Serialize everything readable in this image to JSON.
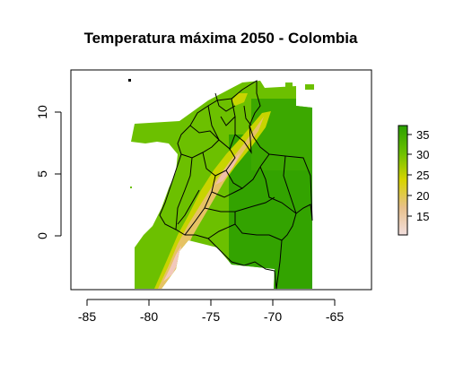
{
  "map": {
    "title": "Temperatura máxima 2050 - Colombia",
    "x_ticks": [
      "-85",
      "-80",
      "-75",
      "-70",
      "-65"
    ],
    "y_ticks": [
      "10",
      "5",
      "0"
    ],
    "colorbar_ticks": [
      "35",
      "30",
      "25",
      "20",
      "15"
    ]
  },
  "colors": {
    "hot_lowland": "#33a300",
    "warm": "#6cc000",
    "mild": "#c8d400",
    "cool": "#e6c264",
    "cold": "#f2c8bc",
    "outline": "#000000"
  }
}
